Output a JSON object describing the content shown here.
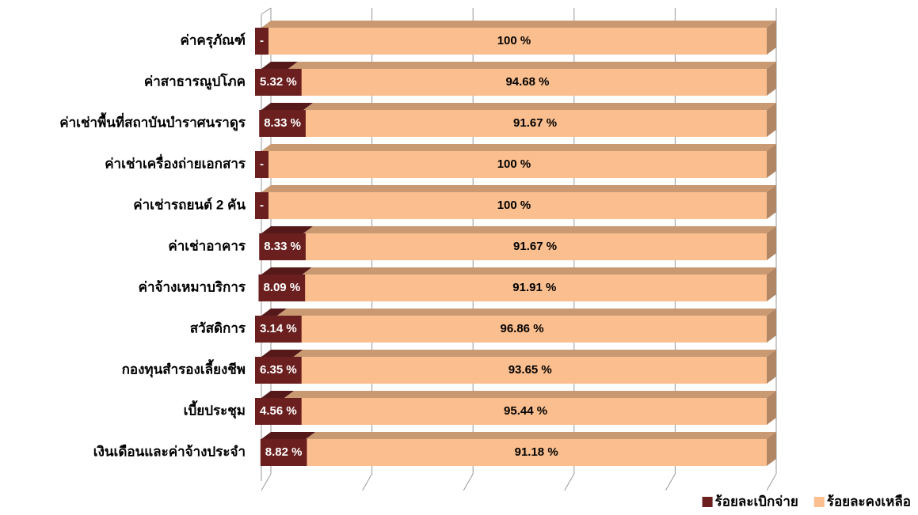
{
  "chart_data": {
    "type": "bar_stacked_horizontal",
    "categories": [
      "ค่าครุภัณฑ์",
      "ค่าสาธารณูปโภค",
      "ค่าเช่าพื้นที่สถาบันบำราศนราดูร",
      "ค่าเช่าเครื่องถ่ายเอกสาร",
      "ค่าเช่ารถยนต์ 2 คัน",
      "ค่าเช่าอาคาร",
      "ค่าจ้างเหมาบริการ",
      "สวัสดิการ",
      "กองทุนสำรองเลี้ยงชีพ",
      "เบี้ยประชุม",
      "เงินเดือนและค่าจ้างประจำ"
    ],
    "series": [
      {
        "name": "ร้อยละเบิกจ่าย",
        "color": "#6b1f1f",
        "values": [
          0,
          5.32,
          8.33,
          0,
          0,
          8.33,
          8.09,
          3.14,
          6.35,
          4.56,
          8.82
        ],
        "value_labels": [
          "-",
          "5.32 %",
          "8.33 %",
          "-",
          "-",
          "8.33 %",
          "8.09 %",
          "3.14 %",
          "6.35 %",
          "4.56 %",
          "8.82 %"
        ]
      },
      {
        "name": "ร้อยละคงเหลือ",
        "color": "#fbbf8f",
        "values": [
          100,
          94.68,
          91.67,
          100,
          100,
          91.67,
          91.91,
          96.86,
          93.65,
          95.44,
          91.18
        ],
        "value_labels": [
          "100 %",
          "94.68 %",
          "91.67 %",
          "100 %",
          "100 %",
          "91.67 %",
          "91.91 %",
          "96.86 %",
          "93.65 %",
          "95.44 %",
          "91.18 %"
        ]
      }
    ],
    "xlim": [
      0,
      100
    ],
    "xticks": [
      0,
      20,
      40,
      60,
      80,
      100
    ],
    "grid": true,
    "legend": "bottom-right"
  }
}
